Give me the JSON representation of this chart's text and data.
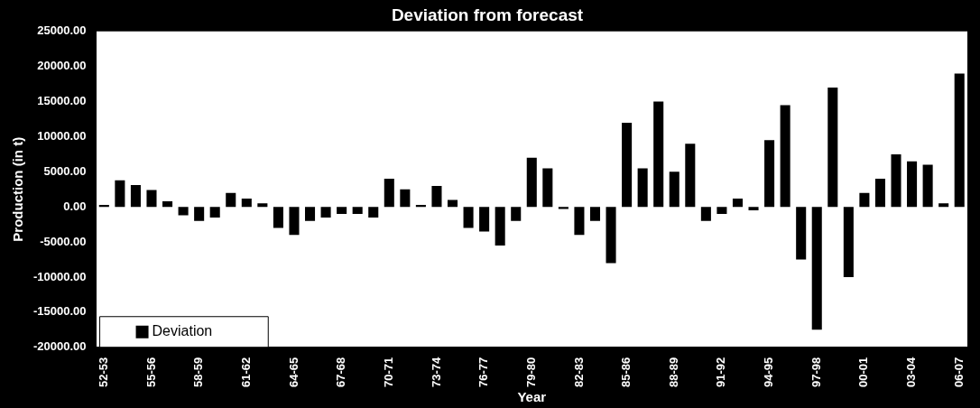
{
  "chart_data": {
    "type": "bar",
    "title": "Deviation from forecast",
    "xlabel": "Year",
    "ylabel": "Production (in t)",
    "categories": [
      "52-53",
      null,
      null,
      "55-56",
      null,
      null,
      "58-59",
      null,
      null,
      "61-62",
      null,
      null,
      "64-65",
      null,
      null,
      "67-68",
      null,
      null,
      "70-71",
      null,
      null,
      "73-74",
      null,
      null,
      "76-77",
      null,
      null,
      "79-80",
      null,
      null,
      "82-83",
      null,
      null,
      "85-86",
      null,
      null,
      "88-89",
      null,
      null,
      "91-92",
      null,
      null,
      "94-95",
      null,
      null,
      "97-98",
      null,
      null,
      "00-01",
      null,
      null,
      "03-04",
      null,
      null,
      "06-07"
    ],
    "series": [
      {
        "name": "Deviation",
        "color": "#000000",
        "values": [
          300,
          3800,
          3100,
          2400,
          800,
          -1200,
          -2000,
          -1500,
          2000,
          1200,
          500,
          -3000,
          -4000,
          -2000,
          -1500,
          -1000,
          -1000,
          -1500,
          4000,
          2500,
          300,
          3000,
          1000,
          -3000,
          -3500,
          -5500,
          -2000,
          7000,
          5500,
          -300,
          -4000,
          -2000,
          -8000,
          12000,
          5500,
          15000,
          5000,
          9000,
          -2000,
          -1000,
          1200,
          -500,
          9500,
          14500,
          -7500,
          -17500,
          17000,
          -10000,
          2000,
          4000,
          7500,
          6500,
          6000,
          500,
          19000
        ]
      }
    ],
    "ylim": [
      -20000,
      25000
    ],
    "yticks": [
      {
        "value": -20000,
        "label": "-20000.00"
      },
      {
        "value": -15000,
        "label": "-15000.00"
      },
      {
        "value": -10000,
        "label": "-10000.00"
      },
      {
        "value": -5000,
        "label": "-5000.00"
      },
      {
        "value": 0,
        "label": "0.00"
      },
      {
        "value": 5000,
        "label": "5000.00"
      },
      {
        "value": 10000,
        "label": "10000.00"
      },
      {
        "value": 15000,
        "label": "15000.00"
      },
      {
        "value": 20000,
        "label": "20000.00"
      },
      {
        "value": 25000,
        "label": "25000.00"
      }
    ],
    "grid": false,
    "legend": "bottom left"
  }
}
